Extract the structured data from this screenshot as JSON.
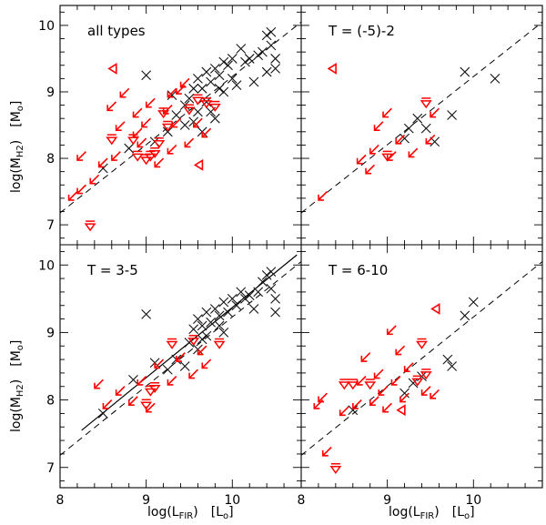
{
  "figure": {
    "x_label_main": "log(L",
    "x_label_sub": "FIR",
    "x_label_close": ")",
    "x_label_unit_open": "[L",
    "x_label_unit_sub": "o",
    "x_label_unit_close": "]",
    "y_label_main": "log(M",
    "y_label_sub": "H2",
    "y_label_close": ")",
    "y_label_unit_open": "[M",
    "y_label_unit_sub": "o",
    "y_label_unit_close": "]"
  },
  "colors": {
    "detection": "#111111",
    "upper_limit": "#ff0000",
    "background": "#ffffff",
    "axes": "#000000"
  },
  "chart_data": [
    {
      "type": "scatter",
      "panel": "top-left",
      "label": "all types",
      "xlim": [
        8,
        10.8
      ],
      "ylim": [
        6.7,
        10.3
      ],
      "x_ticks": [
        "8",
        "9",
        "10"
      ],
      "y_ticks": [
        "7",
        "8",
        "9",
        "10"
      ],
      "show_x_ticklabels": false,
      "show_y_ticklabels": true,
      "lines": [
        {
          "style": "dashed",
          "x": [
            8,
            10.8
          ],
          "y": [
            7.18,
            10.05
          ]
        }
      ],
      "detections": [
        [
          8.5,
          7.85
        ],
        [
          8.8,
          8.15
        ],
        [
          9.1,
          8.25
        ],
        [
          9.25,
          8.4
        ],
        [
          9.35,
          8.65
        ],
        [
          9.45,
          8.5
        ],
        [
          9.5,
          8.9
        ],
        [
          9.55,
          9.05
        ],
        [
          9.6,
          8.7
        ],
        [
          9.6,
          9.2
        ],
        [
          9.65,
          9.05
        ],
        [
          9.7,
          8.85
        ],
        [
          9.7,
          9.3
        ],
        [
          9.75,
          9.15
        ],
        [
          9.8,
          8.6
        ],
        [
          9.8,
          9.35
        ],
        [
          9.85,
          9.05
        ],
        [
          9.85,
          9.25
        ],
        [
          9.9,
          9.45
        ],
        [
          9.95,
          9.4
        ],
        [
          10.0,
          9.5
        ],
        [
          10.0,
          9.2
        ],
        [
          10.05,
          9.1
        ],
        [
          10.1,
          9.65
        ],
        [
          10.15,
          9.45
        ],
        [
          10.2,
          9.5
        ],
        [
          10.3,
          9.55
        ],
        [
          10.35,
          9.6
        ],
        [
          10.4,
          9.85
        ],
        [
          10.45,
          9.7
        ],
        [
          10.5,
          9.5
        ],
        [
          10.5,
          9.35
        ],
        [
          10.4,
          9.3
        ],
        [
          10.25,
          9.15
        ],
        [
          9.9,
          9.0
        ],
        [
          9.55,
          8.55
        ],
        [
          9.65,
          8.4
        ],
        [
          9.0,
          9.25
        ],
        [
          9.45,
          8.8
        ],
        [
          9.3,
          8.95
        ],
        [
          9.75,
          8.7
        ],
        [
          10.45,
          9.9
        ]
      ],
      "upper_limits": [
        {
          "x": 8.2,
          "y": 7.5,
          "dir": "diag"
        },
        {
          "x": 8.3,
          "y": 7.6,
          "dir": "diag"
        },
        {
          "x": 8.45,
          "y": 7.75,
          "dir": "diag"
        },
        {
          "x": 8.35,
          "y": 7.0,
          "dir": "down"
        },
        {
          "x": 8.3,
          "y": 8.1,
          "dir": "diag"
        },
        {
          "x": 8.55,
          "y": 8.0,
          "dir": "diag"
        },
        {
          "x": 8.6,
          "y": 8.3,
          "dir": "down"
        },
        {
          "x": 8.7,
          "y": 8.1,
          "dir": "diag"
        },
        {
          "x": 8.75,
          "y": 8.55,
          "dir": "diag"
        },
        {
          "x": 8.85,
          "y": 8.3,
          "dir": "down"
        },
        {
          "x": 8.9,
          "y": 8.05,
          "dir": "down"
        },
        {
          "x": 8.95,
          "y": 8.45,
          "dir": "diag"
        },
        {
          "x": 9.0,
          "y": 8.0,
          "dir": "down"
        },
        {
          "x": 9.0,
          "y": 8.3,
          "dir": "diag"
        },
        {
          "x": 9.05,
          "y": 8.6,
          "dir": "diag"
        },
        {
          "x": 9.1,
          "y": 8.1,
          "dir": "down"
        },
        {
          "x": 9.1,
          "y": 8.9,
          "dir": "diag"
        },
        {
          "x": 9.15,
          "y": 8.25,
          "dir": "down"
        },
        {
          "x": 9.2,
          "y": 8.0,
          "dir": "diag"
        },
        {
          "x": 9.2,
          "y": 8.7,
          "dir": "down"
        },
        {
          "x": 9.25,
          "y": 8.5,
          "dir": "down"
        },
        {
          "x": 9.3,
          "y": 8.8,
          "dir": "diag"
        },
        {
          "x": 9.35,
          "y": 8.2,
          "dir": "diag"
        },
        {
          "x": 9.4,
          "y": 8.6,
          "dir": "diag"
        },
        {
          "x": 9.45,
          "y": 9.1,
          "dir": "diag"
        },
        {
          "x": 9.5,
          "y": 8.75,
          "dir": "down"
        },
        {
          "x": 9.55,
          "y": 8.3,
          "dir": "diag"
        },
        {
          "x": 9.6,
          "y": 8.9,
          "dir": "down"
        },
        {
          "x": 9.65,
          "y": 8.6,
          "dir": "diag"
        },
        {
          "x": 9.7,
          "y": 8.85,
          "dir": "down"
        },
        {
          "x": 9.75,
          "y": 8.45,
          "dir": "diag"
        },
        {
          "x": 9.8,
          "y": 8.8,
          "dir": "down"
        },
        {
          "x": 9.6,
          "y": 7.9,
          "dir": "left"
        },
        {
          "x": 8.6,
          "y": 9.35,
          "dir": "left"
        },
        {
          "x": 9.05,
          "y": 8.05,
          "dir": "down"
        },
        {
          "x": 8.95,
          "y": 8.75,
          "dir": "diag"
        },
        {
          "x": 9.35,
          "y": 9.05,
          "dir": "diag"
        },
        {
          "x": 9.5,
          "y": 9.2,
          "dir": "diag"
        },
        {
          "x": 8.65,
          "y": 8.85,
          "dir": "diag"
        },
        {
          "x": 8.8,
          "y": 9.05,
          "dir": "diag"
        }
      ]
    },
    {
      "type": "scatter",
      "panel": "top-right",
      "label": "T = (-5)-2",
      "xlim": [
        8,
        10.8
      ],
      "ylim": [
        6.7,
        10.3
      ],
      "x_ticks": [
        "8",
        "9",
        "10"
      ],
      "y_ticks": [
        "7",
        "8",
        "9",
        "10"
      ],
      "show_x_ticklabels": false,
      "show_y_ticklabels": false,
      "lines": [
        {
          "style": "dashed",
          "x": [
            8,
            10.8
          ],
          "y": [
            7.18,
            10.05
          ]
        }
      ],
      "detections": [
        [
          9.2,
          8.3
        ],
        [
          9.35,
          8.6
        ],
        [
          9.45,
          8.45
        ],
        [
          9.55,
          8.25
        ],
        [
          9.75,
          8.65
        ],
        [
          9.9,
          9.3
        ],
        [
          10.25,
          9.2
        ],
        [
          9.25,
          8.45
        ]
      ],
      "upper_limits": [
        {
          "x": 8.3,
          "y": 7.5,
          "dir": "diag"
        },
        {
          "x": 8.35,
          "y": 9.35,
          "dir": "left"
        },
        {
          "x": 8.75,
          "y": 8.05,
          "dir": "diag"
        },
        {
          "x": 8.85,
          "y": 7.9,
          "dir": "diag"
        },
        {
          "x": 8.95,
          "y": 8.55,
          "dir": "diag"
        },
        {
          "x": 9.0,
          "y": 8.05,
          "dir": "down"
        },
        {
          "x": 9.05,
          "y": 8.75,
          "dir": "diag"
        },
        {
          "x": 9.1,
          "y": 8.1,
          "dir": "diag"
        },
        {
          "x": 9.2,
          "y": 8.35,
          "dir": "diag"
        },
        {
          "x": 9.35,
          "y": 8.15,
          "dir": "diag"
        },
        {
          "x": 9.45,
          "y": 8.85,
          "dir": "down"
        },
        {
          "x": 9.55,
          "y": 8.35,
          "dir": "diag"
        },
        {
          "x": 9.6,
          "y": 8.75,
          "dir": "diag"
        },
        {
          "x": 8.9,
          "y": 8.2,
          "dir": "diag"
        }
      ]
    },
    {
      "type": "scatter",
      "panel": "bottom-left",
      "label": "T = 3-5",
      "xlim": [
        8,
        10.8
      ],
      "ylim": [
        6.7,
        10.3
      ],
      "x_ticks": [
        "8",
        "9",
        "10"
      ],
      "y_ticks": [
        "7",
        "8",
        "9",
        "10"
      ],
      "show_x_ticklabels": true,
      "show_y_ticklabels": true,
      "lines": [
        {
          "style": "dashed",
          "x": [
            8,
            10.8
          ],
          "y": [
            7.18,
            10.05
          ]
        },
        {
          "style": "solid",
          "x": [
            8.25,
            10.75
          ],
          "y": [
            7.55,
            10.15
          ]
        }
      ],
      "detections": [
        [
          8.5,
          7.8
        ],
        [
          8.85,
          8.3
        ],
        [
          9.0,
          9.27
        ],
        [
          9.1,
          8.55
        ],
        [
          9.25,
          8.45
        ],
        [
          9.35,
          8.6
        ],
        [
          9.45,
          8.5
        ],
        [
          9.5,
          8.85
        ],
        [
          9.55,
          9.05
        ],
        [
          9.6,
          8.75
        ],
        [
          9.6,
          9.2
        ],
        [
          9.65,
          9.1
        ],
        [
          9.7,
          8.95
        ],
        [
          9.7,
          9.3
        ],
        [
          9.75,
          9.15
        ],
        [
          9.8,
          9.35
        ],
        [
          9.85,
          9.1
        ],
        [
          9.85,
          9.25
        ],
        [
          9.9,
          9.45
        ],
        [
          9.95,
          9.3
        ],
        [
          10.0,
          9.5
        ],
        [
          10.05,
          9.4
        ],
        [
          10.1,
          9.6
        ],
        [
          10.15,
          9.5
        ],
        [
          10.2,
          9.55
        ],
        [
          10.3,
          9.6
        ],
        [
          10.35,
          9.75
        ],
        [
          10.4,
          9.85
        ],
        [
          10.45,
          9.65
        ],
        [
          10.5,
          9.5
        ],
        [
          10.5,
          9.3
        ],
        [
          10.45,
          9.9
        ],
        [
          9.9,
          9.0
        ],
        [
          10.25,
          9.35
        ],
        [
          9.65,
          8.9
        ]
      ],
      "upper_limits": [
        {
          "x": 8.5,
          "y": 8.3,
          "dir": "diag"
        },
        {
          "x": 8.6,
          "y": 8.0,
          "dir": "diag"
        },
        {
          "x": 8.75,
          "y": 8.2,
          "dir": "diag"
        },
        {
          "x": 8.9,
          "y": 8.05,
          "dir": "diag"
        },
        {
          "x": 9.0,
          "y": 8.35,
          "dir": "diag"
        },
        {
          "x": 9.05,
          "y": 8.15,
          "dir": "down"
        },
        {
          "x": 9.1,
          "y": 7.95,
          "dir": "diag"
        },
        {
          "x": 9.2,
          "y": 8.6,
          "dir": "diag"
        },
        {
          "x": 9.3,
          "y": 8.85,
          "dir": "down"
        },
        {
          "x": 9.35,
          "y": 8.35,
          "dir": "diag"
        },
        {
          "x": 9.45,
          "y": 8.7,
          "dir": "diag"
        },
        {
          "x": 9.55,
          "y": 8.9,
          "dir": "down"
        },
        {
          "x": 9.6,
          "y": 8.45,
          "dir": "diag"
        },
        {
          "x": 9.7,
          "y": 8.8,
          "dir": "diag"
        },
        {
          "x": 9.75,
          "y": 8.6,
          "dir": "diag"
        },
        {
          "x": 9.85,
          "y": 8.85,
          "dir": "down"
        },
        {
          "x": 9.0,
          "y": 7.95,
          "dir": "down"
        },
        {
          "x": 9.1,
          "y": 8.2,
          "dir": "down"
        }
      ]
    },
    {
      "type": "scatter",
      "panel": "bottom-right",
      "label": "T = 6-10",
      "xlim": [
        8,
        10.8
      ],
      "ylim": [
        6.7,
        10.3
      ],
      "x_ticks": [
        "8",
        "9",
        "10"
      ],
      "y_ticks": [
        "7",
        "8",
        "9",
        "10"
      ],
      "show_x_ticklabels": true,
      "show_y_ticklabels": false,
      "lines": [
        {
          "style": "dashed",
          "x": [
            8,
            10.8
          ],
          "y": [
            7.18,
            10.05
          ]
        }
      ],
      "detections": [
        [
          8.6,
          7.85
        ],
        [
          9.2,
          8.1
        ],
        [
          9.3,
          8.25
        ],
        [
          9.7,
          8.6
        ],
        [
          9.75,
          8.5
        ],
        [
          9.9,
          9.25
        ],
        [
          10.0,
          9.45
        ],
        [
          9.4,
          8.35
        ]
      ],
      "upper_limits": [
        {
          "x": 8.35,
          "y": 7.3,
          "dir": "diag"
        },
        {
          "x": 8.4,
          "y": 7.0,
          "dir": "down"
        },
        {
          "x": 8.25,
          "y": 8.0,
          "dir": "diag"
        },
        {
          "x": 8.3,
          "y": 8.1,
          "dir": "diag"
        },
        {
          "x": 8.5,
          "y": 8.25,
          "dir": "down"
        },
        {
          "x": 8.55,
          "y": 7.9,
          "dir": "diag"
        },
        {
          "x": 8.6,
          "y": 8.25,
          "dir": "down"
        },
        {
          "x": 8.7,
          "y": 8.0,
          "dir": "diag"
        },
        {
          "x": 8.75,
          "y": 8.35,
          "dir": "diag"
        },
        {
          "x": 8.8,
          "y": 8.25,
          "dir": "down"
        },
        {
          "x": 8.9,
          "y": 8.05,
          "dir": "diag"
        },
        {
          "x": 8.95,
          "y": 8.45,
          "dir": "diag"
        },
        {
          "x": 9.0,
          "y": 8.2,
          "dir": "diag"
        },
        {
          "x": 9.05,
          "y": 7.95,
          "dir": "diag"
        },
        {
          "x": 9.1,
          "y": 9.1,
          "dir": "diag"
        },
        {
          "x": 9.15,
          "y": 8.35,
          "dir": "diag"
        },
        {
          "x": 9.2,
          "y": 8.8,
          "dir": "diag"
        },
        {
          "x": 9.25,
          "y": 8.1,
          "dir": "diag"
        },
        {
          "x": 9.3,
          "y": 8.55,
          "dir": "diag"
        },
        {
          "x": 9.35,
          "y": 8.3,
          "dir": "down"
        },
        {
          "x": 9.4,
          "y": 8.85,
          "dir": "down"
        },
        {
          "x": 9.45,
          "y": 8.4,
          "dir": "down"
        },
        {
          "x": 9.5,
          "y": 8.2,
          "dir": "diag"
        },
        {
          "x": 9.55,
          "y": 9.35,
          "dir": "left"
        },
        {
          "x": 9.6,
          "y": 8.15,
          "dir": "diag"
        },
        {
          "x": 9.15,
          "y": 7.85,
          "dir": "left"
        },
        {
          "x": 8.8,
          "y": 8.7,
          "dir": "diag"
        }
      ]
    }
  ]
}
